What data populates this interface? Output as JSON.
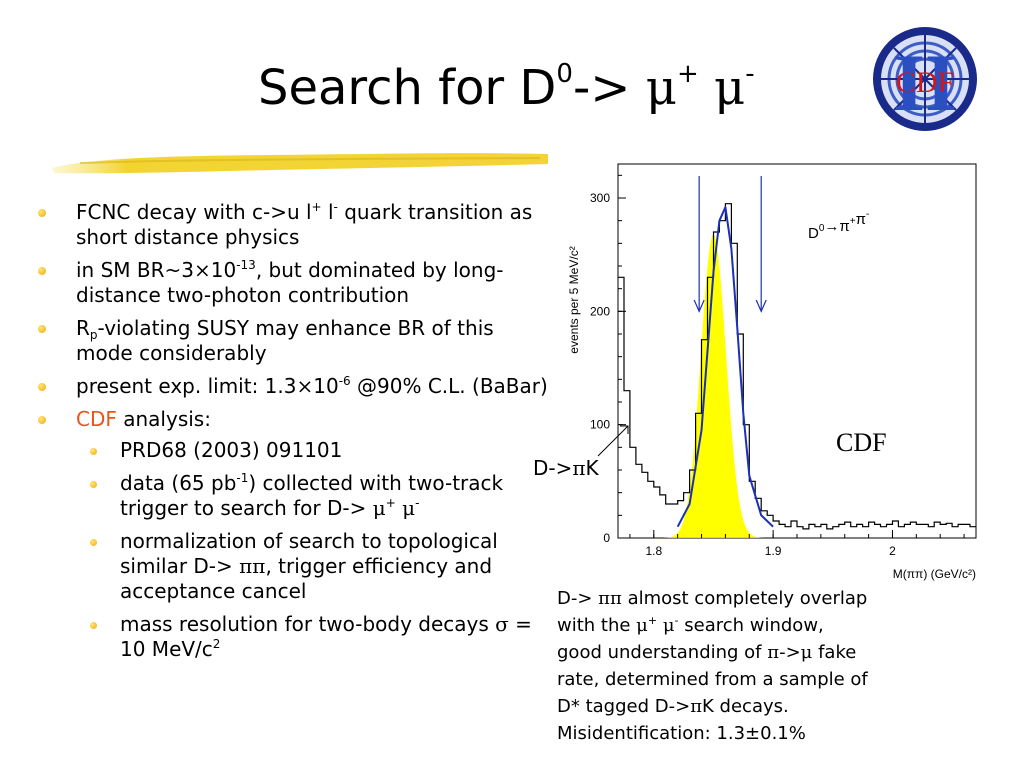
{
  "title": {
    "prefix": "Search for D",
    "sup0": "0",
    "arrow": "->",
    "mu1": "μ",
    "sup_plus": "+",
    "mu2": "μ",
    "sup_minus": "-"
  },
  "logo": {
    "text": "CDF",
    "emblem": "II",
    "colors": {
      "ring": "#1a2a8a",
      "inner": "#2b4fc0",
      "text": "#d01818"
    }
  },
  "bullets": {
    "b1": {
      "a": "FCNC decay with c->u l",
      "s1": "+",
      "b": " l",
      "s2": "-",
      "c": " quark transition as short distance physics"
    },
    "b2": {
      "a": "in SM BR~3",
      "times": "×",
      "b": "10",
      "s1": "-13",
      "c": ", but dominated by long-distance two-photon contribution"
    },
    "b3": {
      "a": "R",
      "sub": "p",
      "b": "-violating SUSY may enhance BR of this mode considerably"
    },
    "b4": {
      "a": "present exp. limit: 1.3",
      "times": "×",
      "b": "10",
      "s1": "-6",
      "c": " @90% C.L. (BaBar)"
    },
    "b5": {
      "cdf": "CDF",
      "rest": " analysis:"
    },
    "sub": {
      "s1": "PRD68 (2003) 091101",
      "s2": {
        "a": "data (65 pb",
        "sup": "-1",
        "b": ") collected with two-track trigger to search for D-> ",
        "mu1": "μ",
        "p": "+",
        "mu2": "μ",
        "m": "-"
      },
      "s3": {
        "a": "normalization of search to topological similar D-> ",
        "pipi": "ππ",
        "b": ", trigger efficiency and acceptance cancel"
      },
      "s4": {
        "a": "mass resolution for two-body decays ",
        "sigma": "σ",
        "b": " = 10 MeV/c",
        "sup": "2"
      }
    }
  },
  "annotations": {
    "dk_a": "D->",
    "dk_pi": "π",
    "dk_b": "K",
    "cdf": "CDF"
  },
  "caption": {
    "l1a": "D-> ",
    "l1pi": "ππ",
    "l1b": " almost completely overlap",
    "l2a": "with the ",
    "l2mu1": "μ",
    "l2p": "+",
    "l2mu2": "μ",
    "l2m": "-",
    "l2b": " search window,",
    "l3a": "good understanding of ",
    "l3pi": "π",
    "l3ar": "->",
    "l3mu": "μ",
    "l3b": " fake",
    "l4": "rate, determined from a sample of",
    "l5a": "D* tagged D->",
    "l5pi": "π",
    "l5b": "K decays.",
    "l6": "Misidentification: 1.3±0.1%"
  },
  "chart_data": {
    "type": "line",
    "ylabel": "events per 5 MeV/c²",
    "xlabel": "M(ππ) (GeV/c²)",
    "xlim": [
      1.77,
      2.07
    ],
    "ylim": [
      0,
      330
    ],
    "x_ticks": [
      "1.8",
      "1.9",
      "2"
    ],
    "y_ticks": [
      "0",
      "100",
      "200",
      "300"
    ],
    "legend_label": "D⁰→π⁺π⁻",
    "legend_text": {
      "a": "D",
      "sup0": "0",
      "arrow": "→",
      "pi1": "π",
      "p": "+",
      "pi2": "π",
      "m": "-"
    },
    "window_arrows_x": [
      1.838,
      1.89
    ],
    "histogram": {
      "x": [
        1.77,
        1.775,
        1.78,
        1.785,
        1.79,
        1.795,
        1.8,
        1.805,
        1.81,
        1.815,
        1.82,
        1.825,
        1.83,
        1.835,
        1.84,
        1.845,
        1.85,
        1.855,
        1.86,
        1.865,
        1.87,
        1.875,
        1.88,
        1.885,
        1.89,
        1.895,
        1.9,
        1.905,
        1.91,
        1.915,
        1.92,
        1.925,
        1.93,
        1.935,
        1.94,
        1.945,
        1.95,
        1.955,
        1.96,
        1.965,
        1.97,
        1.975,
        1.98,
        1.985,
        1.99,
        1.995,
        2.0,
        2.005,
        2.01,
        2.015,
        2.02,
        2.025,
        2.03,
        2.035,
        2.04,
        2.045,
        2.05,
        2.055,
        2.06,
        2.065
      ],
      "values": [
        230,
        130,
        80,
        65,
        58,
        50,
        45,
        38,
        30,
        30,
        33,
        40,
        60,
        110,
        175,
        230,
        270,
        280,
        295,
        260,
        180,
        100,
        50,
        35,
        24,
        20,
        15,
        12,
        10,
        15,
        10,
        8,
        12,
        10,
        12,
        8,
        10,
        12,
        14,
        10,
        12,
        10,
        14,
        12,
        10,
        12,
        15,
        10,
        12,
        14,
        12,
        12,
        10,
        14,
        12,
        13,
        10,
        12,
        12,
        10
      ]
    },
    "fit": {
      "x": [
        1.82,
        1.83,
        1.84,
        1.845,
        1.85,
        1.855,
        1.86,
        1.865,
        1.87,
        1.875,
        1.88,
        1.89,
        1.9
      ],
      "values": [
        10,
        30,
        95,
        165,
        235,
        280,
        292,
        255,
        185,
        110,
        55,
        20,
        10
      ]
    },
    "template_pipi": {
      "mean": 1.85,
      "sigma": 0.0105,
      "peak": 268
    },
    "colors": {
      "histogram": "#000000",
      "fit": "#1c2fb8",
      "template": "#ffff00",
      "arrows": "#1c2fb8"
    }
  }
}
